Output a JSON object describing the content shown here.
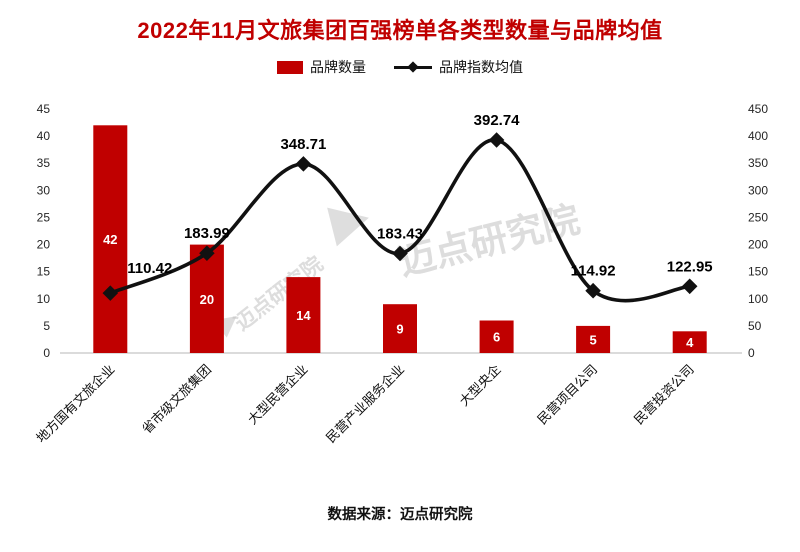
{
  "page": {
    "title": "2022年11月文旅集团百强榜单各类型数量与品牌均值",
    "footer": "数据来源：迈点研究院",
    "watermark": "迈点研究院"
  },
  "legend": {
    "bars_label": "品牌数量",
    "line_label": "品牌指数均值"
  },
  "colors": {
    "title": "#C00000",
    "bar": "#C00000",
    "line": "#111111",
    "axis": "#b7b7b7",
    "watermark": "#bdbdbd"
  },
  "chart_data": {
    "type": "combo",
    "categories": [
      "地方国有文旅企业",
      "省市级文旅集团",
      "大型民营企业",
      "民营产业服务企业",
      "大型央企",
      "民营项目公司",
      "民营投资公司"
    ],
    "series": [
      {
        "name": "品牌数量",
        "type": "bar",
        "axis": "left",
        "values": [
          42,
          20,
          14,
          9,
          6,
          5,
          4
        ]
      },
      {
        "name": "品牌指数均值",
        "type": "line",
        "axis": "right",
        "values": [
          110.42,
          183.99,
          348.71,
          183.43,
          392.74,
          114.92,
          122.95
        ]
      }
    ],
    "left_axis": {
      "min": 0,
      "max": 45,
      "step": 5
    },
    "right_axis": {
      "min": 0,
      "max": 450,
      "step": 50
    },
    "grid": false,
    "legend_position": "top",
    "x_label_rotation": -45
  }
}
